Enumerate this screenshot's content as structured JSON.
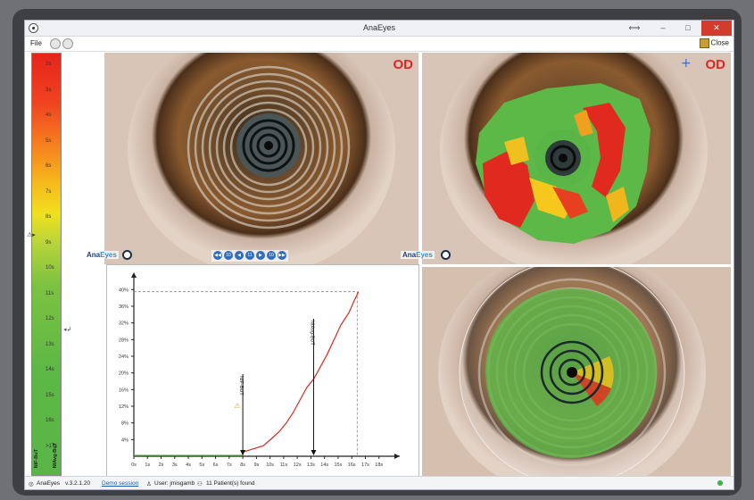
{
  "window": {
    "title": "AnaEyes",
    "controls": [
      "⟺",
      "–",
      "□",
      "✕"
    ]
  },
  "menu": {
    "file": "File",
    "close": "Close"
  },
  "scale": {
    "ticks": [
      "2s",
      "3s",
      "4s",
      "5s",
      "6s",
      "7s",
      "8s",
      "9s",
      "10s",
      "11s",
      "12s",
      "13s",
      "14s",
      "15s",
      "16s",
      ">17s"
    ],
    "left_label": "NIF-BuT",
    "right_label": "NIAvg-BuT"
  },
  "overlays": {
    "od": "OD"
  },
  "logo": {
    "part1": "Ana",
    "part2": "Eyes"
  },
  "nav_buttons": [
    "◀◀",
    "10",
    "◀",
    "11",
    "▶",
    "10",
    "▶▶"
  ],
  "chart_data": {
    "type": "line",
    "x": [
      "0s",
      "1s",
      "2s",
      "3s",
      "4s",
      "5s",
      "6s",
      "7s",
      "8s",
      "9s",
      "10s",
      "11s",
      "12s",
      "13s",
      "14s",
      "15s",
      "16s",
      "17s",
      "18s"
    ],
    "y_ticks": [
      "4%",
      "8%",
      "12%",
      "16%",
      "20%",
      "24%",
      "28%",
      "32%",
      "36%",
      "40%"
    ],
    "ylim": [
      0,
      42
    ],
    "xlim": [
      0,
      19
    ],
    "series": [
      {
        "points": [
          [
            0,
            0
          ],
          [
            8.0,
            0
          ],
          [
            8.0,
            1.0
          ],
          [
            8.8,
            1.8
          ],
          [
            9.5,
            2.5
          ],
          [
            10.2,
            4.5
          ],
          [
            10.7,
            6.0
          ],
          [
            11.2,
            8.0
          ],
          [
            11.7,
            10.5
          ],
          [
            12.2,
            13.5
          ],
          [
            12.7,
            16.5
          ],
          [
            13.2,
            18.5
          ],
          [
            13.7,
            21.5
          ],
          [
            14.2,
            24.5
          ],
          [
            14.7,
            28.0
          ],
          [
            15.2,
            31.5
          ],
          [
            15.8,
            34.5
          ],
          [
            16.2,
            37.5
          ],
          [
            16.5,
            39.5
          ]
        ]
      }
    ],
    "annotations": [
      {
        "label": "NIF-BUT",
        "x": 8.0
      },
      {
        "label": "NIAvg-BUT",
        "x": 13.2
      }
    ],
    "max_y_line": 39.5,
    "max_x_line": 16.4,
    "colors": {
      "line": "#d42b1f",
      "baseline": "#62b34a",
      "axis": "#222"
    }
  },
  "status": {
    "app": "AnaEyes",
    "version": "v.3.2.1.20",
    "demo": "Demo session",
    "user": "User: jmisgamb",
    "patients": "11 Patient(s) found"
  }
}
